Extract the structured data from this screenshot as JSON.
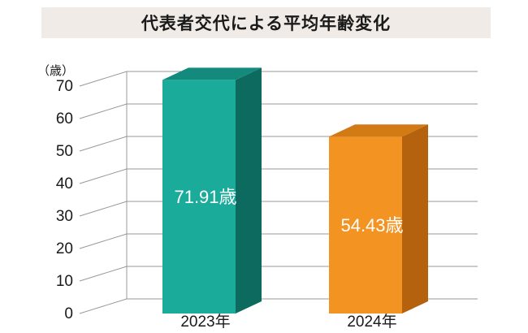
{
  "chart_data": {
    "type": "bar",
    "title": "代表者交代による平均年齢変化",
    "unit_label": "（歳）",
    "categories": [
      "2023年",
      "2024年"
    ],
    "values": [
      71.91,
      54.43
    ],
    "value_labels": [
      "71.91歳",
      "54.43歳"
    ],
    "ylim": [
      0,
      70
    ],
    "yticks": [
      0,
      10,
      20,
      30,
      40,
      50,
      60,
      70
    ],
    "grid": true,
    "bar_colors": [
      {
        "front": "#1aab9b",
        "side": "#0c6b5e",
        "top": "#138a7c"
      },
      {
        "front": "#f39322",
        "side": "#b5620e",
        "top": "#d27a14"
      }
    ]
  }
}
